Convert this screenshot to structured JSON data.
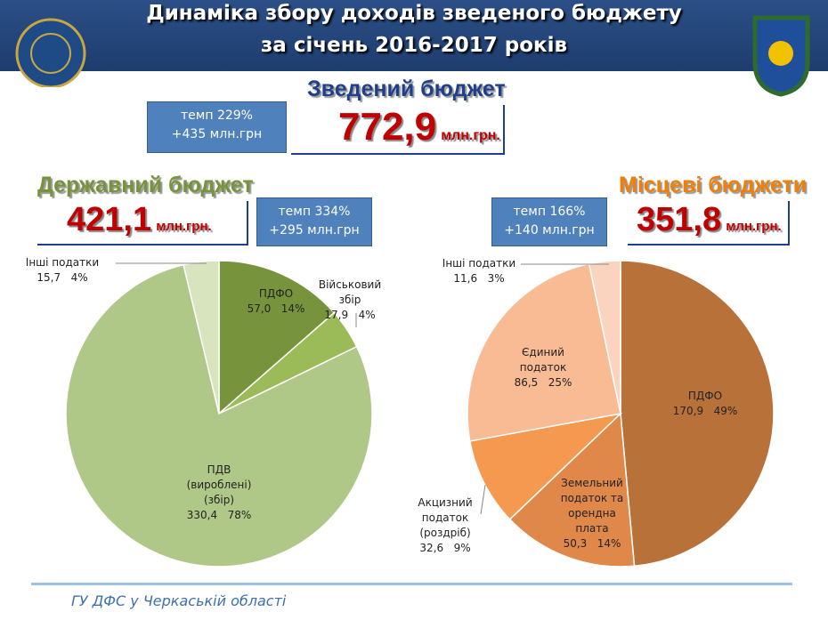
{
  "header": {
    "line1": "Динаміка збору доходів зведеного бюджету",
    "line2": "за січень 2016-2017 років"
  },
  "summary": {
    "title": "Зведений бюджет",
    "total": "772,9",
    "unit": "млн.грн.",
    "growth": "темп 229%",
    "delta": "+435 млн.грн"
  },
  "chart_data": [
    {
      "type": "pie",
      "title": "Державний бюджет",
      "total": "421,1",
      "unit": "млн.грн.",
      "growth": "темп 334%",
      "delta": "+295 млн.грн",
      "categories": [
        "ПДФО",
        "Військовий\nзбір",
        "ПДВ\n(вироблені)\n(збір)",
        "Інші податки"
      ],
      "values": [
        57.0,
        17.9,
        330.4,
        15.7
      ],
      "value_labels": [
        "57,0",
        "17,9",
        "330,4",
        "15,7"
      ],
      "percent_labels": [
        "14%",
        "4%",
        "78%",
        "4%"
      ],
      "colors": [
        "#77933c",
        "#9bbb59",
        "#b0c887",
        "#d7e4bd"
      ]
    },
    {
      "type": "pie",
      "title": "Місцеві бюджети",
      "total": "351,8",
      "unit": "млн.грн.",
      "growth": "темп 166%",
      "delta": "+140 млн.грн",
      "categories": [
        "ПДФО",
        "Земельний\nподаток та\nорендна\nплата",
        "Акцизний\nподаток\n(роздріб)",
        "Єдиний\nподаток",
        "Інші податки"
      ],
      "values": [
        170.9,
        50.3,
        32.6,
        86.5,
        11.6
      ],
      "value_labels": [
        "170,9",
        "50,3",
        "32,6",
        "86,5",
        "11,6"
      ],
      "percent_labels": [
        "49%",
        "14%",
        "9%",
        "25%",
        "3%"
      ],
      "colors": [
        "#b9713a",
        "#e0874a",
        "#f4994f",
        "#f8bb94",
        "#fbd4bf"
      ]
    }
  ],
  "footer": "ГУ ДФС у Черкаській області"
}
